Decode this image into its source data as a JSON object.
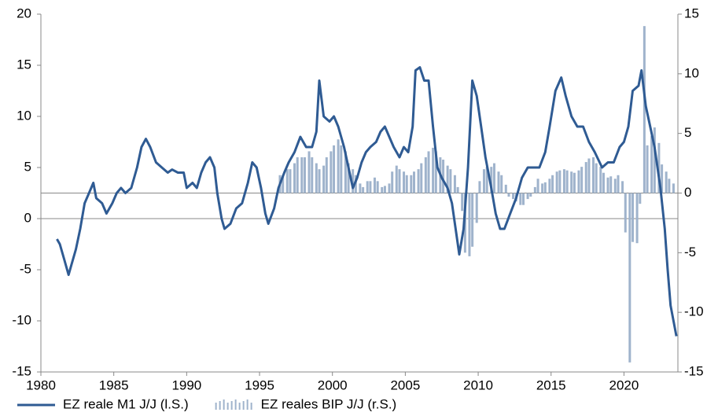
{
  "chart_data": {
    "type": "line",
    "xlim": [
      1980,
      2023.7
    ],
    "xticks": [
      1980,
      1985,
      1990,
      1995,
      2000,
      2005,
      2010,
      2015,
      2020
    ],
    "ylim": [
      -15,
      20
    ],
    "yticks": [
      -15,
      -10,
      -5,
      0,
      5,
      10,
      15,
      20
    ],
    "y2lim": [
      -15,
      15
    ],
    "y2ticks": [
      -15,
      -10,
      -5,
      0,
      5,
      10,
      15
    ],
    "legend": "bottom",
    "series": [
      {
        "name": "EZ reale M1 J/J (l.S.)",
        "type": "line",
        "axis": "y",
        "color": "#2f5b93",
        "x": [
          1981.1,
          1981.3,
          1981.6,
          1981.9,
          1982.1,
          1982.4,
          1982.7,
          1983.0,
          1983.3,
          1983.6,
          1983.8,
          1984.2,
          1984.5,
          1984.9,
          1985.2,
          1985.5,
          1985.8,
          1986.2,
          1986.6,
          1986.9,
          1987.2,
          1987.5,
          1987.9,
          1988.3,
          1988.7,
          1989.0,
          1989.4,
          1989.8,
          1990.0,
          1990.4,
          1990.7,
          1991.0,
          1991.3,
          1991.6,
          1991.9,
          1992.1,
          1992.4,
          1992.6,
          1993.0,
          1993.4,
          1993.8,
          1994.2,
          1994.5,
          1994.8,
          1995.1,
          1995.4,
          1995.6,
          1996.0,
          1996.3,
          1996.7,
          1997.0,
          1997.4,
          1997.8,
          1998.2,
          1998.6,
          1998.9,
          1999.1,
          1999.4,
          1999.8,
          2000.1,
          2000.4,
          2000.8,
          2001.1,
          2001.4,
          2001.7,
          2002.0,
          2002.3,
          2002.6,
          2003.0,
          2003.3,
          2003.6,
          2003.9,
          2004.2,
          2004.6,
          2004.9,
          2005.2,
          2005.5,
          2005.7,
          2006.0,
          2006.3,
          2006.6,
          2006.9,
          2007.2,
          2007.5,
          2007.9,
          2008.2,
          2008.5,
          2008.7,
          2009.0,
          2009.3,
          2009.6,
          2009.9,
          2010.2,
          2010.5,
          2010.9,
          2011.2,
          2011.5,
          2011.8,
          2012.2,
          2012.6,
          2013.0,
          2013.4,
          2013.8,
          2014.2,
          2014.6,
          2014.9,
          2015.3,
          2015.7,
          2016.0,
          2016.4,
          2016.8,
          2017.2,
          2017.6,
          2018.0,
          2018.5,
          2018.9,
          2019.3,
          2019.7,
          2020.0,
          2020.3,
          2020.6,
          2021.0,
          2021.2,
          2021.5,
          2021.8,
          2022.1,
          2022.5,
          2022.8,
          2023.0,
          2023.2,
          2023.4,
          2023.6
        ],
        "values": [
          -2,
          -2.5,
          -4,
          -5.5,
          -4.5,
          -3,
          -1,
          1.5,
          2.5,
          3.5,
          2,
          1.5,
          0.5,
          1.5,
          2.5,
          3,
          2.5,
          3,
          5,
          7,
          7.8,
          7,
          5.5,
          5,
          4.5,
          4.8,
          4.5,
          4.5,
          3,
          3.5,
          3,
          4.5,
          5.5,
          6,
          5,
          2.5,
          0,
          -1,
          -0.5,
          1,
          1.5,
          3.5,
          5.5,
          5,
          3,
          0.5,
          -0.5,
          1,
          3,
          4.5,
          5.5,
          6.5,
          8,
          7,
          7,
          8.5,
          13.5,
          10,
          9.5,
          10,
          9,
          7,
          5,
          3,
          4,
          5.5,
          6.5,
          7,
          7.5,
          8.5,
          9,
          8,
          7,
          6,
          7,
          6.5,
          9,
          14.5,
          14.8,
          13.5,
          13.5,
          9,
          5,
          4,
          3,
          1.5,
          -1.5,
          -3.5,
          -1,
          5,
          13.5,
          12,
          9,
          6,
          3,
          0.5,
          -1,
          -1,
          0.5,
          2,
          4,
          5,
          5,
          5,
          6.5,
          9,
          12.5,
          13.8,
          12,
          10,
          9,
          9,
          7.5,
          6.5,
          5,
          5.5,
          5.5,
          7,
          7.5,
          9,
          12.5,
          13,
          14.5,
          11,
          9,
          7,
          3,
          -1,
          -5,
          -8.5,
          -10,
          -11.5
        ]
      },
      {
        "name": "EZ reales BIP J/J (r.S.)",
        "type": "bar",
        "axis": "y2",
        "color": "#9fb3cc",
        "x": [
          1996.4,
          1996.6,
          1996.9,
          1997.1,
          1997.4,
          1997.6,
          1997.9,
          1998.1,
          1998.4,
          1998.6,
          1998.9,
          1999.1,
          1999.4,
          1999.6,
          1999.9,
          2000.1,
          2000.4,
          2000.6,
          2000.9,
          2001.1,
          2001.4,
          2001.6,
          2001.9,
          2002.1,
          2002.4,
          2002.6,
          2002.9,
          2003.1,
          2003.4,
          2003.6,
          2003.9,
          2004.1,
          2004.4,
          2004.6,
          2004.9,
          2005.1,
          2005.4,
          2005.6,
          2005.9,
          2006.1,
          2006.4,
          2006.6,
          2006.9,
          2007.1,
          2007.4,
          2007.6,
          2007.9,
          2008.1,
          2008.4,
          2008.6,
          2008.9,
          2009.1,
          2009.4,
          2009.6,
          2009.9,
          2010.1,
          2010.4,
          2010.6,
          2010.9,
          2011.1,
          2011.4,
          2011.6,
          2011.9,
          2012.1,
          2012.4,
          2012.6,
          2012.9,
          2013.1,
          2013.4,
          2013.6,
          2013.9,
          2014.1,
          2014.4,
          2014.6,
          2014.9,
          2015.1,
          2015.4,
          2015.6,
          2015.9,
          2016.1,
          2016.4,
          2016.6,
          2016.9,
          2017.1,
          2017.4,
          2017.6,
          2017.9,
          2018.1,
          2018.4,
          2018.6,
          2018.9,
          2019.1,
          2019.4,
          2019.6,
          2019.9,
          2020.1,
          2020.4,
          2020.6,
          2020.9,
          2021.1,
          2021.4,
          2021.6,
          2021.9,
          2022.1,
          2022.4,
          2022.6,
          2022.9,
          2023.1,
          2023.4
        ],
        "values": [
          1.5,
          1.5,
          2,
          2,
          2.5,
          3,
          3,
          3,
          3.5,
          3,
          2.5,
          2,
          2.3,
          3,
          3.5,
          4,
          4.5,
          4,
          3.5,
          2.5,
          2,
          1.5,
          0.8,
          0.5,
          1,
          1,
          1.3,
          1,
          0.5,
          0.6,
          0.8,
          1.8,
          2.3,
          2,
          1.8,
          1.5,
          1.5,
          1.8,
          2,
          2.5,
          3,
          3.5,
          3.8,
          3.5,
          3,
          2.8,
          2.3,
          2,
          1.5,
          0.5,
          -1.5,
          -5,
          -5.3,
          -4.5,
          -2.5,
          1,
          2,
          2.2,
          2.2,
          2.5,
          1.8,
          1.5,
          0.7,
          -0.3,
          -0.5,
          -0.7,
          -1,
          -1,
          -0.5,
          -0.3,
          0.5,
          1.2,
          0.8,
          0.9,
          1.2,
          1.5,
          1.8,
          1.9,
          2,
          1.9,
          1.8,
          1.7,
          1.9,
          2.2,
          2.6,
          2.9,
          3,
          2.5,
          2.2,
          1.7,
          1.3,
          1.4,
          1.2,
          1.5,
          1,
          -3.3,
          -14.2,
          -4.1,
          -4.2,
          -0.9,
          14,
          4,
          4.8,
          5.5,
          4.2,
          2.4,
          1.8,
          1.2,
          0.8
        ]
      }
    ]
  }
}
